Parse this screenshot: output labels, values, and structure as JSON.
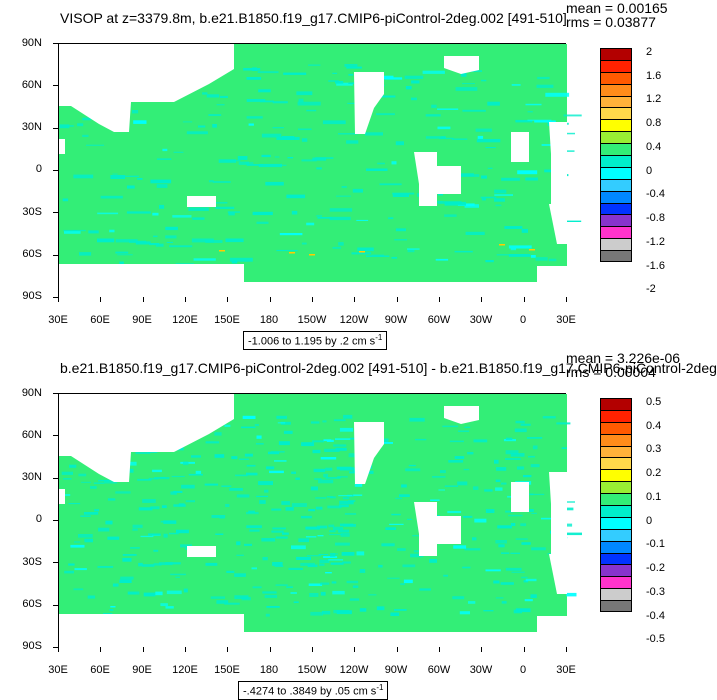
{
  "chart_data": [
    {
      "type": "heatmap",
      "title": "VISOP at z=3379.8m, b.e21.B1850.f19_g17.CMIP6-piControl-2deg.002 [491-510]",
      "stats": {
        "mean": "mean = 0.00165",
        "rms": "rms = 0.03877"
      },
      "subtitle": "-1.006 to 1.195 by .2 cm s",
      "units_exponent": "-1",
      "y_ticks": [
        "90N",
        "60N",
        "30N",
        "0",
        "30S",
        "60S",
        "90S"
      ],
      "x_ticks": [
        "30E",
        "60E",
        "90E",
        "120E",
        "150E",
        "180",
        "150W",
        "120W",
        "90W",
        "60W",
        "30W",
        "0",
        "30E"
      ],
      "colorbar_labels": [
        "2",
        "1.6",
        "1.2",
        "0.8",
        "0.4",
        "0",
        "-0.4",
        "-0.8",
        "-1.2",
        "-1.6",
        "-2"
      ],
      "dominant_color": "#33ee77"
    },
    {
      "type": "heatmap",
      "title": "b.e21.B1850.f19_g17.CMIP6-piControl-2deg.002 [491-510] - b.e21.B1850.f19_g17.CMIP6-piControl-2deg",
      "stats": {
        "mean": "mean = 3.226e-06",
        "rms": "rms = 0.00004"
      },
      "subtitle": "-.4274 to .3849 by .05 cm s",
      "units_exponent": "-1",
      "y_ticks": [
        "90N",
        "60N",
        "30N",
        "0",
        "30S",
        "60S",
        "90S"
      ],
      "x_ticks": [
        "30E",
        "60E",
        "90E",
        "120E",
        "150E",
        "180",
        "150W",
        "120W",
        "90W",
        "60W",
        "30W",
        "0",
        "30E"
      ],
      "colorbar_labels": [
        "0.5",
        "0.4",
        "0.3",
        "0.2",
        "0.1",
        "0",
        "-0.1",
        "-0.2",
        "-0.3",
        "-0.4",
        "-0.5"
      ],
      "dominant_color": "#33ee77"
    }
  ],
  "colorbar_colors": [
    "#b30000",
    "#ff2200",
    "#ff5a00",
    "#ff8c1a",
    "#ffb23a",
    "#ffd84a",
    "#ffff00",
    "#99ee33",
    "#33ee77",
    "#00eecc",
    "#00ffff",
    "#33ccff",
    "#0088ff",
    "#0033ff",
    "#8833cc",
    "#ff33cc",
    "#cccccc",
    "#777777"
  ]
}
